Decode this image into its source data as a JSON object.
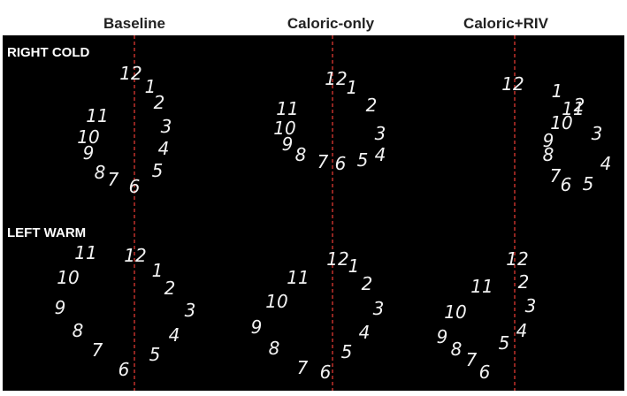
{
  "column_headers": [
    "Baseline",
    "Caloric-only",
    "Caloric+RIV"
  ],
  "rows": [
    {
      "label": "RIGHT COLD",
      "clocks": [
        {
          "numbers": [
            "12",
            "1",
            "2",
            "3",
            "4",
            "5",
            "6",
            "7",
            "8",
            "9",
            "10",
            "11"
          ]
        },
        {
          "numbers": [
            "12",
            "1",
            "2",
            "3",
            "4",
            "5",
            "6",
            "7",
            "8",
            "9",
            "10",
            "11"
          ]
        },
        {
          "numbers": [
            "12",
            "1",
            "2",
            "3",
            "4",
            "5",
            "6",
            "7",
            "8",
            "9",
            "10",
            "11"
          ]
        }
      ]
    },
    {
      "label": "LEFT WARM",
      "clocks": [
        {
          "numbers": [
            "12",
            "1",
            "2",
            "3",
            "4",
            "5",
            "6",
            "7",
            "8",
            "9",
            "10",
            "11"
          ]
        },
        {
          "numbers": [
            "12",
            "1",
            "2",
            "3",
            "4",
            "5",
            "6",
            "7",
            "8",
            "9",
            "10",
            "11"
          ]
        },
        {
          "numbers": [
            "12",
            "2",
            "3",
            "4",
            "5",
            "6",
            "7",
            "8",
            "9",
            "10",
            "11"
          ]
        }
      ]
    }
  ]
}
